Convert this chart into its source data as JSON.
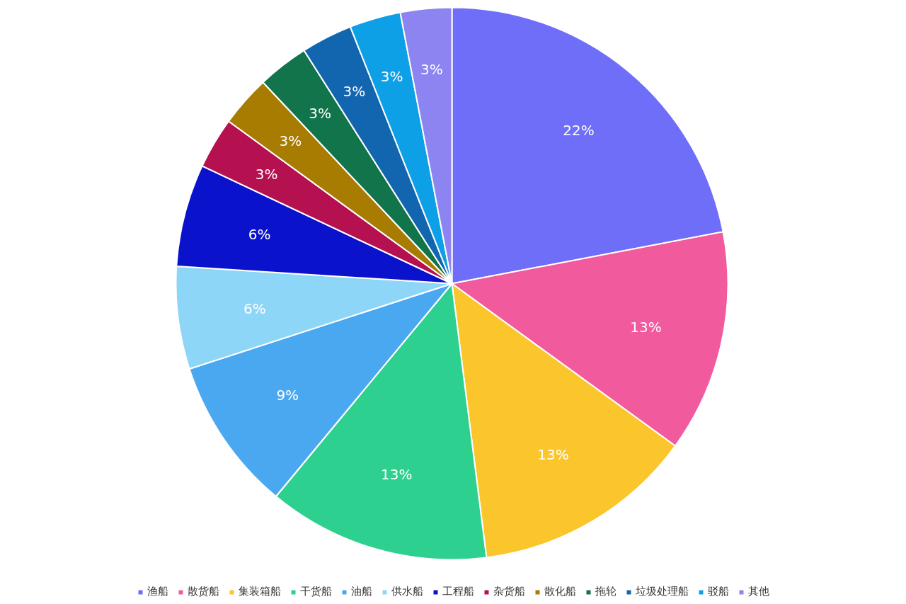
{
  "chart_data": {
    "type": "pie",
    "categories": [
      "渔船",
      "散货船",
      "集装箱船",
      "干货船",
      "油船",
      "供水船",
      "工程船",
      "杂货船",
      "散化船",
      "拖轮",
      "垃圾处理船",
      "驳船",
      "其他"
    ],
    "values": [
      22,
      13,
      13,
      13,
      9,
      6,
      6,
      3,
      3,
      3,
      3,
      3,
      3
    ],
    "value_labels": [
      "22%",
      "13%",
      "13%",
      "13%",
      "9%",
      "6%",
      "6%",
      "3%",
      "3%",
      "3%",
      "3%",
      "3%",
      "3%"
    ],
    "colors": [
      "#6e6ef8",
      "#f25a9e",
      "#fbc52c",
      "#2ed08f",
      "#4aa8f0",
      "#8dd6f8",
      "#0a12cc",
      "#b5104f",
      "#a77c00",
      "#12744a",
      "#1266b0",
      "#0ea0e6",
      "#8c84f0"
    ],
    "legend": "bottom"
  }
}
